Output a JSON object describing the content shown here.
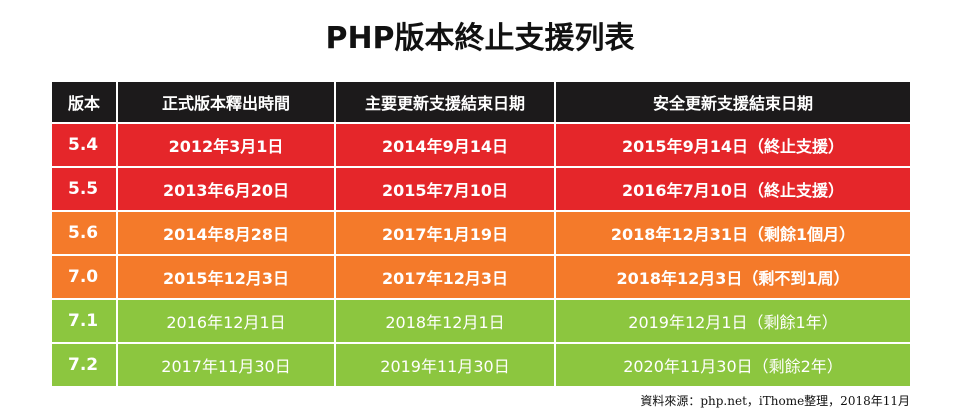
{
  "title": "PHP版本終止支援列表",
  "colors": {
    "header_bg": "#1c1a1b",
    "ended": "#e5262a",
    "ending_soon": "#f47a2a",
    "supported": "#8cc63f"
  },
  "table": {
    "headers": [
      "版本",
      "正式版本釋出時間",
      "主要更新支援結束日期",
      "安全更新支援結束日期"
    ],
    "rows": [
      {
        "status": "red",
        "version": "5.4",
        "release": "2012年3月1日",
        "active_end": "2014年9月14日",
        "security_end": "2015年9月14日（終止支援）"
      },
      {
        "status": "red",
        "version": "5.5",
        "release": "2013年6月20日",
        "active_end": "2015年7月10日",
        "security_end": "2016年7月10日（終止支援）"
      },
      {
        "status": "orange",
        "version": "5.6",
        "release": "2014年8月28日",
        "active_end": "2017年1月19日",
        "security_end": "2018年12月31日（剩餘1個月）"
      },
      {
        "status": "orange",
        "version": "7.0",
        "release": "2015年12月3日",
        "active_end": "2017年12月3日",
        "security_end": "2018年12月3日（剩不到1周）"
      },
      {
        "status": "green",
        "version": "7.1",
        "release": "2016年12月1日",
        "active_end": "2018年12月1日",
        "security_end": "2019年12月1日（剩餘1年）"
      },
      {
        "status": "green",
        "version": "7.2",
        "release": "2017年11月30日",
        "active_end": "2019年11月30日",
        "security_end": "2020年11月30日（剩餘2年）"
      }
    ]
  },
  "source": "資料來源：php.net，iThome整理，2018年11月"
}
